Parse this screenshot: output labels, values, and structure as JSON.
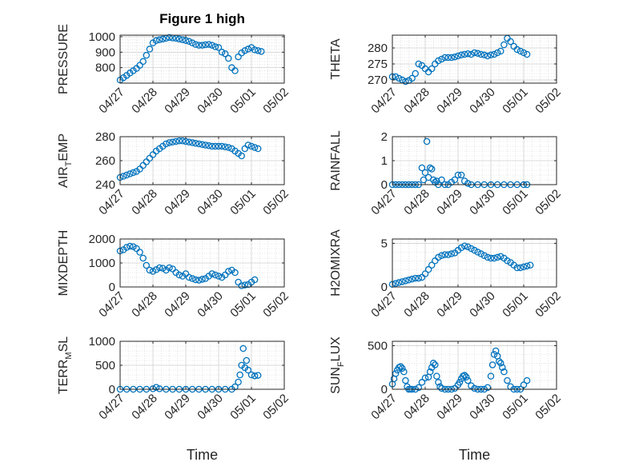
{
  "figure": {
    "title": "Figure 1 high"
  },
  "colors": {
    "marker": "#0072BD",
    "grid": "#d0d0d0",
    "axis": "#262626"
  },
  "chart_data": [
    {
      "type": "scatter",
      "ylabel": "PRESSURE",
      "ylabel_sub": "",
      "ylabel_tail": "",
      "title": "Figure 1 high",
      "xlim": [
        "04/27",
        "05/02"
      ],
      "xticks": [
        "04/27",
        "04/28",
        "04/29",
        "04/30",
        "05/01",
        "05/02"
      ],
      "ylim": [
        700,
        1010
      ],
      "yticks": [
        800,
        900,
        1000
      ],
      "x_days": [
        0,
        0.1,
        0.2,
        0.3,
        0.4,
        0.5,
        0.6,
        0.7,
        0.8,
        0.9,
        1.0,
        1.1,
        1.2,
        1.3,
        1.4,
        1.5,
        1.6,
        1.7,
        1.8,
        1.9,
        2.0,
        2.1,
        2.2,
        2.3,
        2.4,
        2.5,
        2.6,
        2.7,
        2.8,
        2.9,
        3.0,
        3.1,
        3.2,
        3.3,
        3.4,
        3.5,
        3.6,
        3.7,
        3.8,
        3.9,
        4.0,
        4.1,
        4.2,
        4.3
      ],
      "y": [
        720,
        735,
        750,
        765,
        780,
        795,
        815,
        840,
        880,
        920,
        960,
        975,
        980,
        985,
        990,
        995,
        992,
        990,
        985,
        980,
        975,
        970,
        960,
        950,
        945,
        945,
        948,
        950,
        945,
        935,
        930,
        900,
        890,
        860,
        800,
        780,
        870,
        895,
        910,
        920,
        930,
        915,
        910,
        905
      ]
    },
    {
      "type": "scatter",
      "ylabel": "THETA",
      "ylabel_sub": "",
      "ylabel_tail": "",
      "xlim": [
        "04/27",
        "05/02"
      ],
      "xticks": [
        "04/27",
        "04/28",
        "04/29",
        "04/30",
        "05/01",
        "05/02"
      ],
      "ylim": [
        269,
        284
      ],
      "yticks": [
        270,
        275,
        280
      ],
      "x_days": [
        0,
        0.1,
        0.2,
        0.3,
        0.4,
        0.5,
        0.6,
        0.7,
        0.8,
        0.9,
        1.0,
        1.1,
        1.2,
        1.3,
        1.4,
        1.5,
        1.6,
        1.7,
        1.8,
        1.9,
        2.0,
        2.1,
        2.2,
        2.3,
        2.4,
        2.5,
        2.6,
        2.7,
        2.8,
        2.9,
        3.0,
        3.1,
        3.2,
        3.3,
        3.4,
        3.5,
        3.6,
        3.7,
        3.8,
        3.9,
        4.0,
        4.1
      ],
      "y": [
        271,
        271,
        270.5,
        270,
        269.5,
        269.8,
        270.5,
        272,
        275,
        274.5,
        273.5,
        272.5,
        273.5,
        275,
        276,
        276.5,
        277,
        277,
        277,
        277.2,
        277.5,
        277.8,
        278,
        278.2,
        278,
        278.5,
        278.3,
        278,
        277.8,
        277.5,
        277.8,
        278,
        278.5,
        279,
        281,
        283,
        282,
        280.5,
        279.5,
        279,
        278.5,
        278
      ]
    },
    {
      "type": "scatter",
      "ylabel": "AIR",
      "ylabel_sub": "T",
      "ylabel_tail": "EMP",
      "xlim": [
        "04/27",
        "05/02"
      ],
      "xticks": [
        "04/27",
        "04/28",
        "04/29",
        "04/30",
        "05/01",
        "05/02"
      ],
      "ylim": [
        240,
        280
      ],
      "yticks": [
        240,
        260,
        280
      ],
      "x_days": [
        0,
        0.1,
        0.2,
        0.3,
        0.4,
        0.5,
        0.6,
        0.7,
        0.8,
        0.9,
        1.0,
        1.1,
        1.2,
        1.3,
        1.4,
        1.5,
        1.6,
        1.7,
        1.8,
        1.9,
        2.0,
        2.1,
        2.2,
        2.3,
        2.4,
        2.5,
        2.6,
        2.7,
        2.8,
        2.9,
        3.0,
        3.1,
        3.2,
        3.3,
        3.4,
        3.5,
        3.6,
        3.7,
        3.8,
        3.9,
        4.0,
        4.1,
        4.2
      ],
      "y": [
        246,
        247,
        248,
        249,
        250,
        251,
        253,
        256,
        259,
        262,
        265,
        268,
        270,
        272,
        274,
        275,
        275.5,
        276,
        276.5,
        276.5,
        276,
        275.5,
        275,
        274.5,
        274,
        273.5,
        273,
        272.5,
        272,
        272,
        272,
        272,
        271.5,
        271,
        270,
        268,
        266,
        264,
        270,
        273,
        272,
        271,
        270
      ]
    },
    {
      "type": "scatter",
      "ylabel": "RAINFALL",
      "ylabel_sub": "",
      "ylabel_tail": "",
      "xlim": [
        "04/27",
        "05/02"
      ],
      "xticks": [
        "04/27",
        "04/28",
        "04/29",
        "04/30",
        "05/01",
        "05/02"
      ],
      "ylim": [
        0,
        2
      ],
      "yticks": [
        0,
        1,
        2
      ],
      "x_days": [
        0,
        0.1,
        0.2,
        0.3,
        0.4,
        0.5,
        0.6,
        0.7,
        0.8,
        0.9,
        0.95,
        1.0,
        1.05,
        1.1,
        1.15,
        1.2,
        1.25,
        1.3,
        1.35,
        1.4,
        1.5,
        1.6,
        1.7,
        1.8,
        1.9,
        2.0,
        2.1,
        2.2,
        2.3,
        2.4,
        2.6,
        2.8,
        3.0,
        3.2,
        3.4,
        3.6,
        3.8,
        4.0,
        4.1
      ],
      "y": [
        0,
        0,
        0,
        0,
        0,
        0,
        0,
        0,
        0,
        0.7,
        0.2,
        0.5,
        1.8,
        0.3,
        0.7,
        0.65,
        0.2,
        0.1,
        0.15,
        0,
        0.2,
        0,
        0,
        0.1,
        0.2,
        0.4,
        0.4,
        0.15,
        0.05,
        0,
        0,
        0,
        0,
        0,
        0,
        0,
        0,
        0,
        0
      ]
    },
    {
      "type": "scatter",
      "ylabel": "MIXDEPTH",
      "ylabel_sub": "",
      "ylabel_tail": "",
      "xlim": [
        "04/27",
        "05/02"
      ],
      "xticks": [
        "04/27",
        "04/28",
        "04/29",
        "04/30",
        "05/01",
        "05/02"
      ],
      "ylim": [
        0,
        2000
      ],
      "yticks": [
        0,
        1000,
        2000
      ],
      "x_days": [
        0,
        0.1,
        0.2,
        0.3,
        0.4,
        0.5,
        0.6,
        0.7,
        0.8,
        0.9,
        1.0,
        1.1,
        1.2,
        1.3,
        1.4,
        1.5,
        1.6,
        1.7,
        1.8,
        1.9,
        2.0,
        2.1,
        2.2,
        2.3,
        2.4,
        2.5,
        2.6,
        2.7,
        2.8,
        2.9,
        3.0,
        3.1,
        3.2,
        3.3,
        3.4,
        3.5,
        3.6,
        3.7,
        3.8,
        3.9,
        4.0,
        4.1
      ],
      "y": [
        1500,
        1550,
        1650,
        1700,
        1680,
        1600,
        1450,
        1200,
        900,
        700,
        650,
        720,
        800,
        780,
        700,
        800,
        750,
        600,
        500,
        450,
        550,
        400,
        350,
        300,
        280,
        320,
        350,
        450,
        550,
        500,
        450,
        400,
        500,
        650,
        700,
        600,
        200,
        50,
        80,
        100,
        200,
        300
      ]
    },
    {
      "type": "scatter",
      "ylabel": "H2OMIXRA",
      "ylabel_sub": "",
      "ylabel_tail": "",
      "xlim": [
        "04/27",
        "05/02"
      ],
      "xticks": [
        "04/27",
        "04/28",
        "04/29",
        "04/30",
        "05/01",
        "05/02"
      ],
      "ylim": [
        0,
        5.5
      ],
      "yticks": [
        0,
        5
      ],
      "x_days": [
        0,
        0.1,
        0.2,
        0.3,
        0.4,
        0.5,
        0.6,
        0.7,
        0.8,
        0.9,
        1.0,
        1.1,
        1.2,
        1.3,
        1.4,
        1.5,
        1.6,
        1.7,
        1.8,
        1.9,
        2.0,
        2.1,
        2.2,
        2.3,
        2.4,
        2.5,
        2.6,
        2.7,
        2.8,
        2.9,
        3.0,
        3.1,
        3.2,
        3.3,
        3.4,
        3.5,
        3.6,
        3.7,
        3.8,
        3.9,
        4.0,
        4.1,
        4.2
      ],
      "y": [
        0.3,
        0.4,
        0.5,
        0.6,
        0.7,
        0.8,
        0.9,
        1.0,
        1.0,
        1.1,
        1.5,
        2.0,
        2.5,
        3.0,
        3.4,
        3.6,
        3.7,
        3.7,
        3.8,
        3.9,
        4.2,
        4.5,
        4.7,
        4.6,
        4.4,
        4.2,
        4.0,
        3.8,
        3.6,
        3.4,
        3.3,
        3.3,
        3.4,
        3.5,
        3.3,
        3.0,
        2.8,
        2.5,
        2.2,
        2.2,
        2.3,
        2.4,
        2.5
      ]
    },
    {
      "type": "scatter",
      "ylabel": "TERR",
      "ylabel_sub": "M",
      "ylabel_tail": "SL",
      "xlim": [
        "04/27",
        "05/02"
      ],
      "xticks": [
        "04/27",
        "04/28",
        "04/29",
        "04/30",
        "05/01",
        "05/02"
      ],
      "xlabel": "Time",
      "ylim": [
        0,
        1000
      ],
      "yticks": [
        0,
        500,
        1000
      ],
      "x_days": [
        0,
        0.2,
        0.4,
        0.6,
        0.8,
        1.0,
        1.1,
        1.2,
        1.4,
        1.6,
        1.8,
        2.0,
        2.2,
        2.4,
        2.6,
        2.8,
        3.0,
        3.2,
        3.4,
        3.5,
        3.6,
        3.65,
        3.7,
        3.75,
        3.8,
        3.85,
        3.9,
        4.0,
        4.1,
        4.2
      ],
      "y": [
        0,
        0,
        0,
        0,
        0,
        10,
        40,
        10,
        0,
        0,
        0,
        0,
        0,
        0,
        0,
        0,
        0,
        0,
        0,
        50,
        150,
        300,
        500,
        850,
        450,
        600,
        400,
        300,
        280,
        290
      ]
    },
    {
      "type": "scatter",
      "ylabel": "SUN",
      "ylabel_sub": "F",
      "ylabel_tail": "LUX",
      "xlim": [
        "04/27",
        "05/02"
      ],
      "xticks": [
        "04/27",
        "04/28",
        "04/29",
        "04/30",
        "05/01",
        "05/02"
      ],
      "xlabel": "Time",
      "ylim": [
        0,
        550
      ],
      "yticks": [
        0,
        500
      ],
      "x_days": [
        0,
        0.05,
        0.1,
        0.15,
        0.2,
        0.25,
        0.3,
        0.35,
        0.4,
        0.45,
        0.5,
        0.55,
        0.6,
        0.7,
        0.8,
        0.9,
        1.0,
        1.1,
        1.15,
        1.2,
        1.25,
        1.3,
        1.35,
        1.4,
        1.45,
        1.5,
        1.6,
        1.7,
        1.8,
        1.9,
        2.0,
        2.05,
        2.1,
        2.15,
        2.2,
        2.25,
        2.3,
        2.4,
        2.5,
        2.6,
        2.7,
        2.8,
        2.9,
        3.0,
        3.05,
        3.1,
        3.15,
        3.2,
        3.25,
        3.3,
        3.35,
        3.4,
        3.5,
        3.6,
        3.7,
        3.8,
        3.9,
        4.0,
        4.1
      ],
      "y": [
        60,
        120,
        180,
        220,
        250,
        260,
        240,
        200,
        100,
        30,
        0,
        0,
        0,
        0,
        20,
        80,
        130,
        140,
        200,
        250,
        300,
        280,
        150,
        80,
        30,
        10,
        0,
        0,
        0,
        10,
        50,
        80,
        120,
        150,
        160,
        140,
        100,
        40,
        10,
        0,
        0,
        0,
        20,
        150,
        280,
        400,
        440,
        380,
        320,
        300,
        250,
        200,
        100,
        30,
        0,
        0,
        0,
        50,
        100
      ]
    }
  ]
}
